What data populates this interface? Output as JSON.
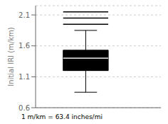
{
  "chart_data": {
    "type": "box",
    "ylabel": "Initial IRI (m/km)",
    "note": "1 m/km = 63.4 inches/mi",
    "q1": 1.2,
    "median": 1.4,
    "q3": 1.53,
    "whisker_low": 0.85,
    "whisker_high": 1.85,
    "outliers": [
      1.95,
      2.05,
      2.15
    ],
    "color": "#000000",
    "ylim": [
      0.6,
      2.25
    ],
    "yticks": [
      0.6,
      1.1,
      1.6,
      2.1
    ],
    "grid": true,
    "tick_labels": "y"
  }
}
